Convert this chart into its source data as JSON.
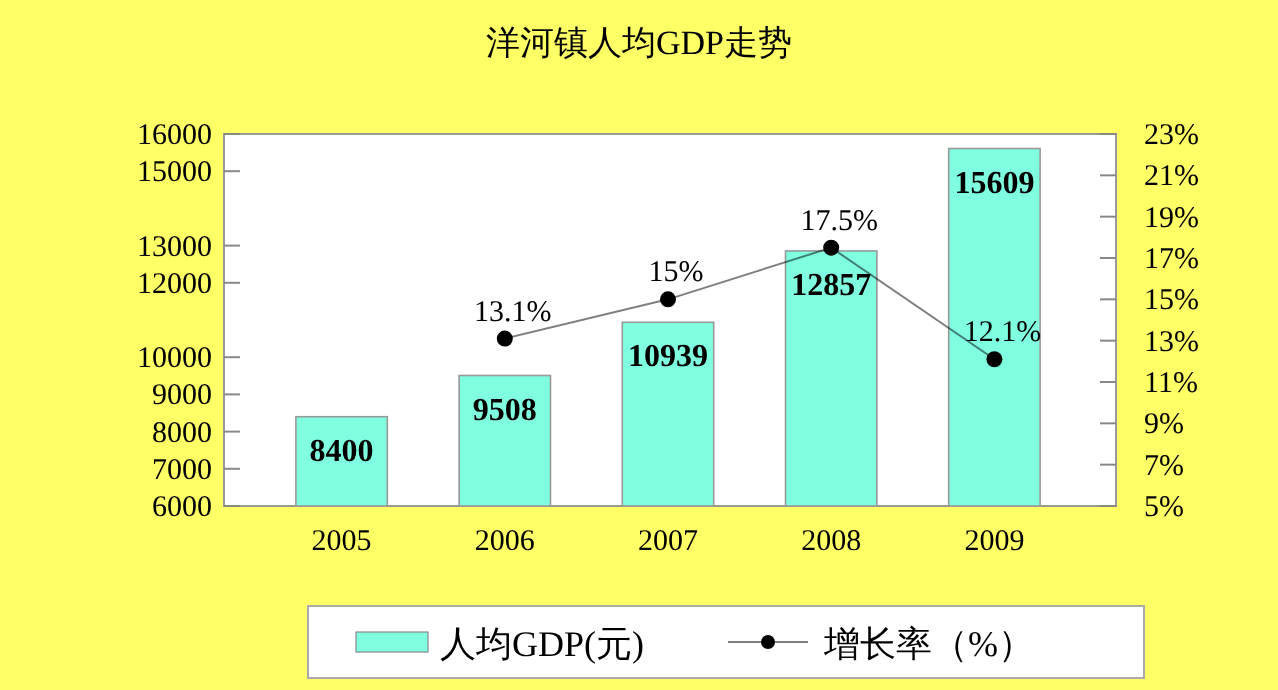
{
  "chart_data": {
    "type": "bar",
    "title": "洋河镇人均GDP走势",
    "categories": [
      "2005",
      "2006",
      "2007",
      "2008",
      "2009"
    ],
    "series": [
      {
        "name": "人均GDP(元)",
        "color": "#7fffdf",
        "values": [
          8400,
          9508,
          10939,
          12857,
          15609
        ]
      },
      {
        "name": "增长率（%）",
        "type": "line",
        "axis": "y2",
        "color": "#000000",
        "marker": "circle",
        "values": [
          null,
          13.1,
          15,
          17.5,
          12.1
        ],
        "value_labels": [
          null,
          "13.1%",
          "15%",
          "17.5%",
          "12.1%"
        ]
      }
    ],
    "data_labels": true,
    "ylim": [
      6000,
      16000
    ],
    "yticks": [
      6000,
      7000,
      8000,
      9000,
      10000,
      12000,
      13000,
      15000,
      16000
    ],
    "y2lim": [
      5,
      23
    ],
    "y2ticks": [
      {
        "value": 5,
        "label": "5%"
      },
      {
        "value": 7,
        "label": "7%"
      },
      {
        "value": 9,
        "label": "9%"
      },
      {
        "value": 11,
        "label": "11%"
      },
      {
        "value": 13,
        "label": "13%"
      },
      {
        "value": 15,
        "label": "15%"
      },
      {
        "value": 17,
        "label": "17%"
      },
      {
        "value": 19,
        "label": "19%"
      },
      {
        "value": 21,
        "label": "21%"
      },
      {
        "value": 23,
        "label": "23%"
      }
    ],
    "legend": "bottom",
    "grid": false
  }
}
